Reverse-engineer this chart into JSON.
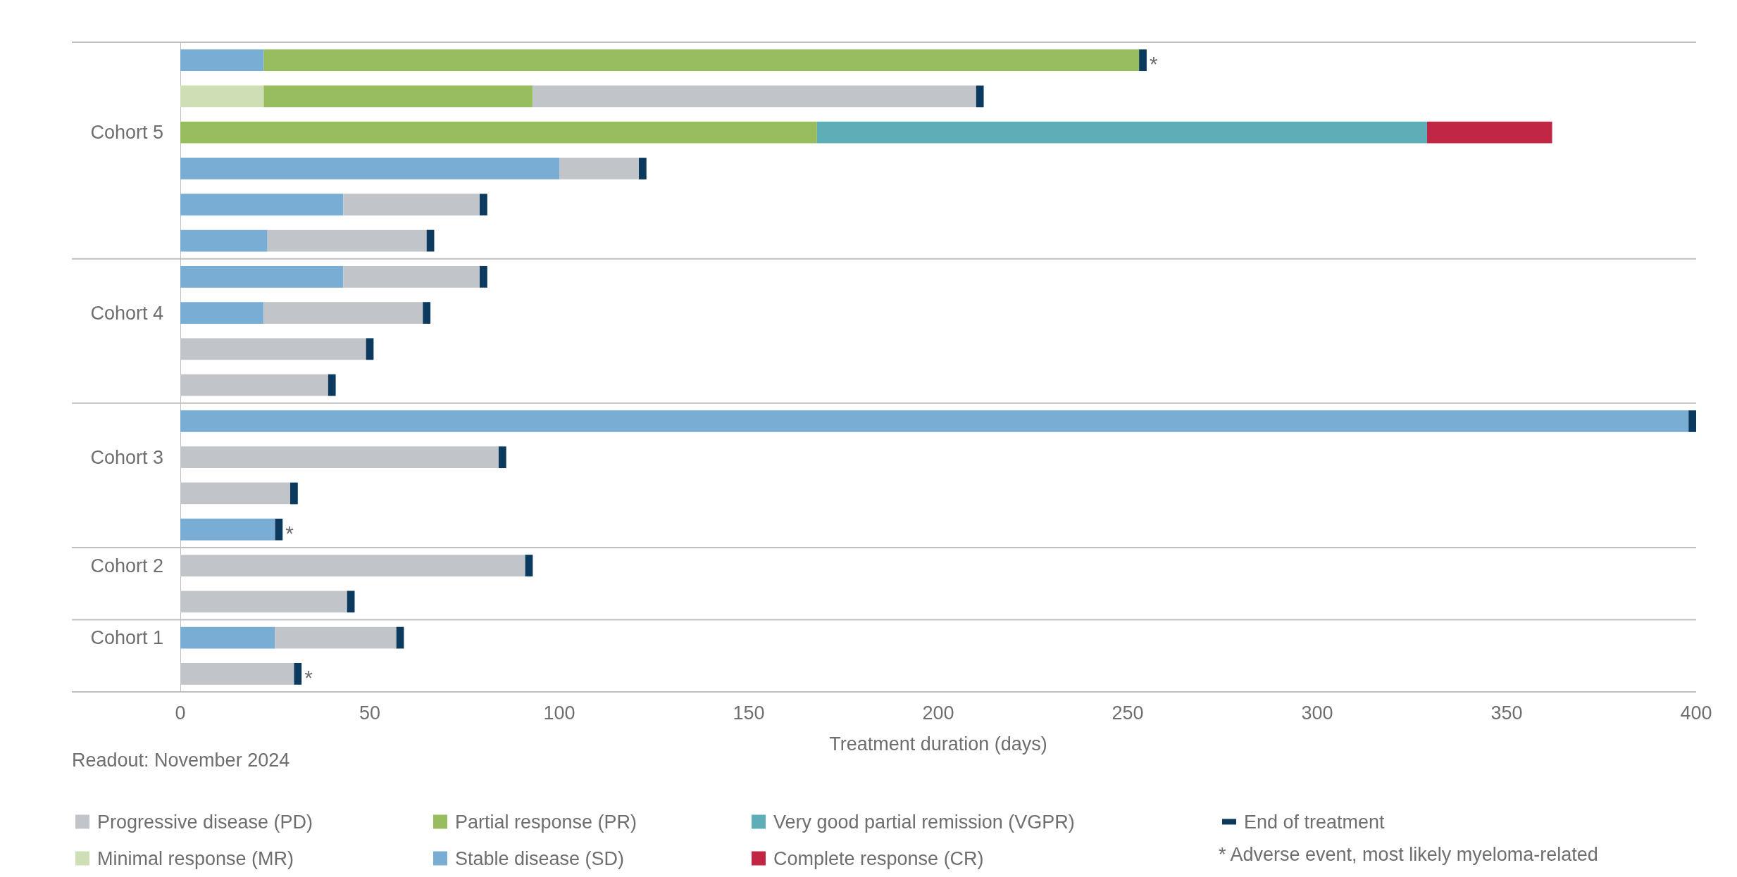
{
  "chart_data": {
    "type": "bar",
    "orientation": "horizontal",
    "stacked": true,
    "xlabel": "Treatment duration (days)",
    "legend": "bottom",
    "categories": [
      null,
      null,
      "Cohort 5",
      null,
      null,
      null,
      null,
      "Cohort 4",
      null,
      null,
      null,
      "Cohort 3",
      null,
      null,
      "Cohort 2",
      null,
      "Cohort 1",
      null
    ],
    "series": [
      {
        "name": "Stable disease (SD)",
        "color": "#7aadd4",
        "values": [
          22,
          null,
          null,
          100,
          43,
          23,
          43,
          22,
          null,
          null,
          398,
          null,
          null,
          25,
          null,
          null,
          25,
          null
        ]
      },
      {
        "name": "Minimal response (MR)",
        "color": "#cfdfb5",
        "values": [
          null,
          22,
          null,
          null,
          null,
          null,
          null,
          null,
          null,
          null,
          null,
          null,
          null,
          null,
          null,
          null,
          null,
          null
        ]
      },
      {
        "name": "Partial response (PR)",
        "color": "#97bd5f",
        "values": [
          231,
          71,
          168,
          null,
          null,
          null,
          null,
          null,
          null,
          null,
          null,
          null,
          null,
          null,
          null,
          null,
          null,
          null
        ]
      },
      {
        "name": "Progressive disease (PD)",
        "color": "#c1c5c9",
        "values": [
          null,
          117,
          null,
          21,
          36,
          42,
          36,
          42,
          49,
          39,
          null,
          84,
          29,
          null,
          91,
          44,
          32,
          30
        ]
      },
      {
        "name": "Very good partial remission (VGPR)",
        "color": "#5eaeb8",
        "values": [
          null,
          null,
          161,
          null,
          null,
          null,
          null,
          null,
          null,
          null,
          null,
          null,
          null,
          null,
          null,
          null,
          null,
          null
        ]
      },
      {
        "name": "Complete response (CR)",
        "color": "#c12645",
        "values": [
          null,
          null,
          33,
          null,
          null,
          null,
          null,
          null,
          null,
          null,
          null,
          null,
          null,
          null,
          null,
          null,
          null,
          null
        ]
      },
      {
        "name": "End of treatment",
        "color": "#0c3a5e",
        "values": [
          2,
          2,
          null,
          2,
          2,
          2,
          2,
          2,
          2,
          2,
          2,
          2,
          2,
          2,
          2,
          2,
          2,
          2
        ],
        "value_labels": [
          "*",
          null,
          null,
          null,
          null,
          null,
          null,
          null,
          null,
          null,
          null,
          null,
          null,
          "*",
          null,
          null,
          null,
          "*"
        ]
      }
    ],
    "xlim": [
      0,
      400
    ],
    "xticks": [
      0,
      50,
      100,
      150,
      200,
      250,
      300,
      350,
      400
    ],
    "annotations": [
      "Readout: November 2024",
      "* Adverse event, most likely myeloma-related"
    ]
  }
}
